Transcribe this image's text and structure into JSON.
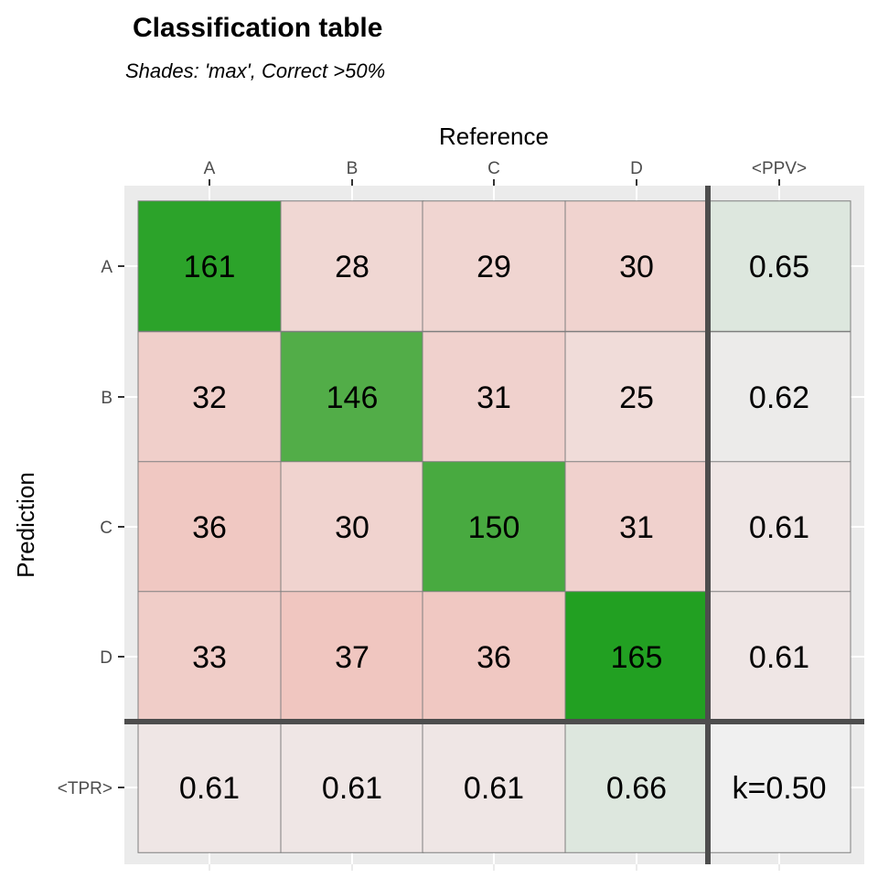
{
  "chart_data": {
    "type": "heatmap",
    "title": "Classification table",
    "subtitle": "Shades: 'max', Correct >50%",
    "xlabel": "Reference",
    "ylabel": "Prediction",
    "columns": [
      "A",
      "B",
      "C",
      "D",
      "<PPV>"
    ],
    "rows": [
      "A",
      "B",
      "C",
      "D",
      "<TPR>"
    ],
    "matrix": [
      [
        161,
        28,
        29,
        30
      ],
      [
        32,
        146,
        31,
        25
      ],
      [
        36,
        30,
        150,
        31
      ],
      [
        33,
        37,
        36,
        165
      ]
    ],
    "ppv": [
      "0.65",
      "0.62",
      "0.61",
      "0.61"
    ],
    "tpr": [
      "0.61",
      "0.61",
      "0.61",
      "0.66"
    ],
    "kappa": "k=0.50",
    "colors": {
      "panel_background": "#ebebeb",
      "gridline": "#ffffff",
      "separator": "#4d4d4d",
      "cell_border": "#7f7f7f",
      "correct_max": "#22a022",
      "incorrect_max": "#f0c6c0",
      "neutral": "#f0f0f0",
      "good_summary": "#dde7de"
    }
  }
}
